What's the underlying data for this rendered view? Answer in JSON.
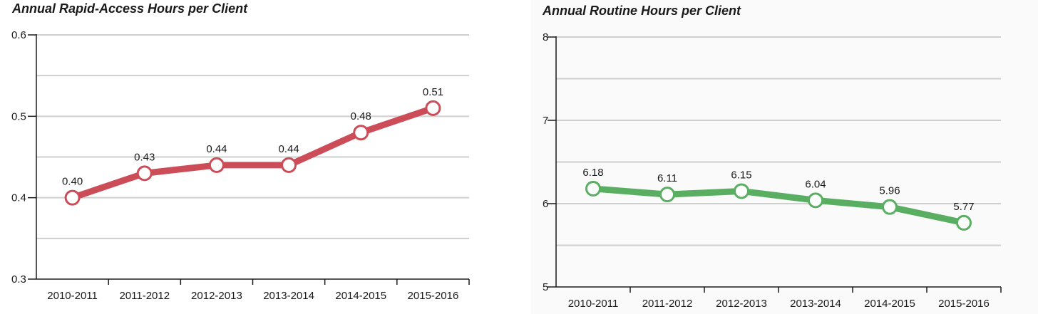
{
  "chart_data": [
    {
      "type": "line",
      "title": "Annual Rapid-Access Hours per Client",
      "categories": [
        "2010-2011",
        "2011-2012",
        "2012-2013",
        "2013-2014",
        "2014-2015",
        "2015-2016"
      ],
      "series": [
        {
          "values": [
            0.4,
            0.43,
            0.44,
            0.44,
            0.48,
            0.51
          ],
          "color": "#cc4c58"
        }
      ],
      "data_labels": [
        "0.40",
        "0.43",
        "0.44",
        "0.44",
        "0.48",
        "0.51"
      ],
      "ylim": [
        0.3,
        0.6
      ],
      "yticks": [
        0.3,
        0.4,
        0.5,
        0.6
      ],
      "ytick_labels": [
        "0.3",
        "0.4",
        "0.5",
        "0.6"
      ],
      "minor_gridlines": [
        0.35,
        0.45,
        0.55
      ],
      "xlabel": "",
      "ylabel": "",
      "grid": true,
      "legend": "none"
    },
    {
      "type": "line",
      "title": "Annual Routine Hours per Client",
      "categories": [
        "2010-2011",
        "2011-2012",
        "2012-2013",
        "2013-2014",
        "2014-2015",
        "2015-2016"
      ],
      "series": [
        {
          "values": [
            6.18,
            6.11,
            6.15,
            6.04,
            5.96,
            5.77
          ],
          "color": "#5aae61"
        }
      ],
      "data_labels": [
        "6.18",
        "6.11",
        "6.15",
        "6.04",
        "5.96",
        "5.77"
      ],
      "ylim": [
        5,
        8
      ],
      "yticks": [
        5,
        6,
        7,
        8
      ],
      "ytick_labels": [
        "5",
        "6",
        "7",
        "8"
      ],
      "minor_gridlines": [
        5.5,
        6.5,
        7.5
      ],
      "xlabel": "",
      "ylabel": "",
      "grid": true,
      "legend": "none"
    }
  ]
}
